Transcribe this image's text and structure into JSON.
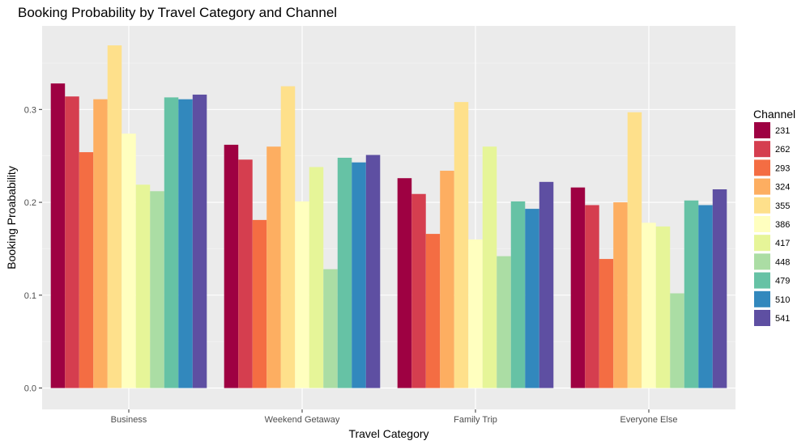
{
  "chart_data": {
    "type": "bar",
    "title": "Booking Probability by Travel Category and Channel",
    "xlabel": "Travel Category",
    "ylabel": "Booking Proabability",
    "categories": [
      "Business",
      "Weekend Getaway",
      "Family Trip",
      "Everyone Else"
    ],
    "ylim": [
      -0.023,
      0.39
    ],
    "yticks": [
      0.0,
      0.1,
      0.2,
      0.3
    ],
    "ytick_labels": [
      "0.0",
      "0.1",
      "0.2",
      "0.3"
    ],
    "grid": true,
    "legend": {
      "title": "Channel",
      "placement": "right"
    },
    "series": [
      {
        "name": "231",
        "color": "#9E0142",
        "values": [
          0.328,
          0.262,
          0.226,
          0.216
        ]
      },
      {
        "name": "262",
        "color": "#D53E4F",
        "values": [
          0.314,
          0.246,
          0.209,
          0.197
        ]
      },
      {
        "name": "293",
        "color": "#F46D43",
        "values": [
          0.254,
          0.181,
          0.166,
          0.139
        ]
      },
      {
        "name": "324",
        "color": "#FDAE61",
        "values": [
          0.311,
          0.26,
          0.234,
          0.2
        ]
      },
      {
        "name": "355",
        "color": "#FEE08B",
        "values": [
          0.369,
          0.325,
          0.308,
          0.297
        ]
      },
      {
        "name": "386",
        "color": "#FFFFBF",
        "values": [
          0.274,
          0.201,
          0.16,
          0.178
        ]
      },
      {
        "name": "417",
        "color": "#E6F598",
        "values": [
          0.219,
          0.238,
          0.26,
          0.174
        ]
      },
      {
        "name": "448",
        "color": "#ABDDA4",
        "values": [
          0.212,
          0.128,
          0.142,
          0.102
        ]
      },
      {
        "name": "479",
        "color": "#66C2A5",
        "values": [
          0.313,
          0.248,
          0.201,
          0.202
        ]
      },
      {
        "name": "510",
        "color": "#3288BD",
        "values": [
          0.311,
          0.243,
          0.193,
          0.197
        ]
      },
      {
        "name": "541",
        "color": "#5E4FA2",
        "values": [
          0.316,
          0.251,
          0.222,
          0.214
        ]
      }
    ]
  }
}
